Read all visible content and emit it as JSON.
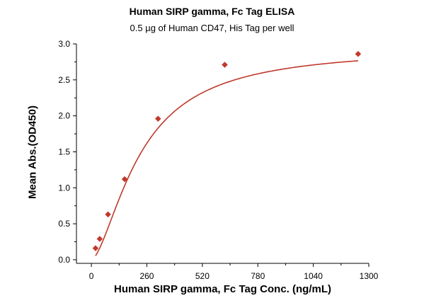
{
  "chart_data": {
    "type": "scatter",
    "title": "Human SIRP gamma, Fc Tag ELISA",
    "subtitle": "0.5 µg of Human CD47, His Tag per well",
    "xlabel": "Human SIRP gamma, Fc Tag Conc. (ng/mL)",
    "ylabel": "Mean Abs.(OD450)",
    "xlim": [
      -70,
      1300
    ],
    "ylim": [
      -0.05,
      3.0
    ],
    "xticks": [
      0,
      260,
      520,
      780,
      1040,
      1300
    ],
    "yticks": [
      0.0,
      0.5,
      1.0,
      1.5,
      2.0,
      2.5,
      3.0
    ],
    "xtick_labels": [
      "0",
      "260",
      "520",
      "780",
      "1040",
      "1300"
    ],
    "ytick_labels": [
      "0.0",
      "0.5",
      "1.0",
      "1.5",
      "2.0",
      "2.5",
      "3.0"
    ],
    "grid": false,
    "marker": "diamond",
    "series": [
      {
        "x": [
          19.5,
          39,
          78,
          156,
          312.5,
          625,
          1250
        ],
        "y": [
          0.16,
          0.29,
          0.63,
          1.12,
          1.96,
          2.71,
          2.86
        ]
      }
    ],
    "fit_curve": {
      "type": "4PL",
      "bottom": 0.0,
      "top": 2.95,
      "ec50": 230,
      "hill": 1.6
    },
    "color": "#c0392b"
  }
}
